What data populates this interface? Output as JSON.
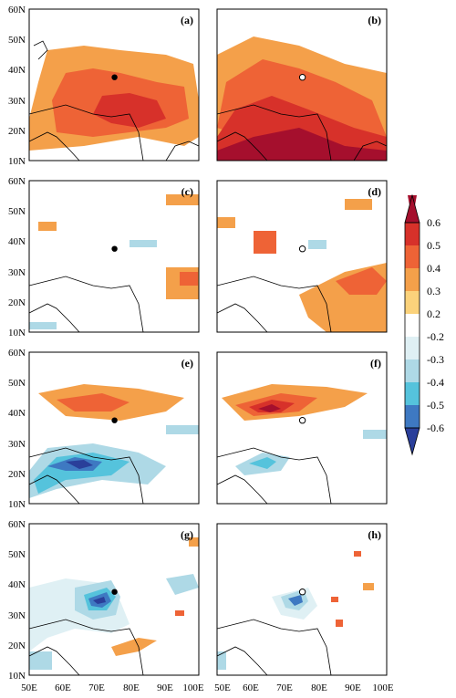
{
  "figure": {
    "panels": [
      {
        "label": "(a)",
        "marker": "filled"
      },
      {
        "label": "(b)",
        "marker": "open"
      },
      {
        "label": "(c)",
        "marker": "filled"
      },
      {
        "label": "(d)",
        "marker": "open"
      },
      {
        "label": "(e)",
        "marker": "filled"
      },
      {
        "label": "(f)",
        "marker": "open"
      },
      {
        "label": "(g)",
        "marker": "filled"
      },
      {
        "label": "(h)",
        "marker": "open"
      }
    ],
    "lat_ticks": [
      "60N",
      "50N",
      "40N",
      "30N",
      "20N",
      "10N"
    ],
    "lon_ticks": [
      "50E",
      "60E",
      "70E",
      "80E",
      "90E",
      "100E"
    ],
    "colorbar": {
      "ticks": [
        "0.6",
        "0.5",
        "0.4",
        "0.3",
        "0.2",
        "-0.2",
        "-0.3",
        "-0.4",
        "-0.5",
        "-0.6"
      ],
      "colors": [
        "#a50f2d",
        "#d7312a",
        "#ee6336",
        "#f4a04a",
        "#fbd27b",
        "#ffffff",
        "#dff0f4",
        "#aed9e6",
        "#55c3dc",
        "#3e79c2",
        "#2a3f9a"
      ]
    },
    "map_domain": {
      "lon": [
        50,
        100
      ],
      "lat": [
        10,
        60
      ]
    },
    "marker_location": {
      "lon": 75.5,
      "lat": 37.5
    }
  }
}
